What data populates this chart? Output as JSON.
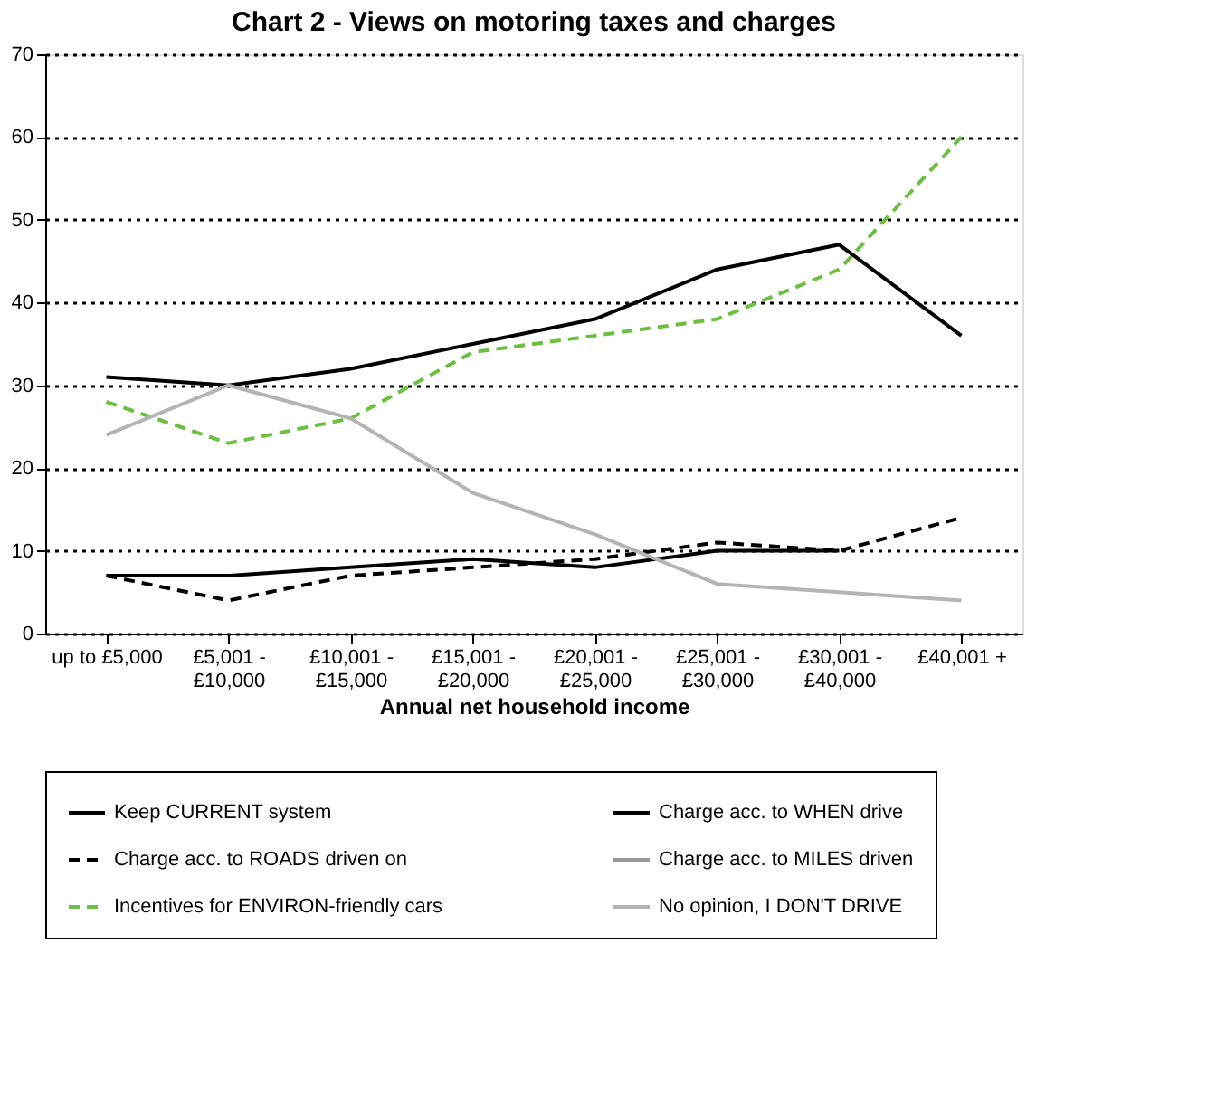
{
  "chart_data": {
    "type": "line",
    "title": "Chart 2 - Views on motoring taxes and charges",
    "xlabel": "Annual net household income",
    "categories": [
      "up to £5,000",
      "£5,001 - £10,000",
      "£10,001 - £15,000",
      "£15,001 - £20,000",
      "£20,001 - £25,000",
      "£25,001 - £30,000",
      "£30,001 - £40,000",
      "£40,001 +"
    ],
    "series": [
      {
        "name": "Keep CURRENT system",
        "color": "#000000",
        "line_style": "solid",
        "values": [
          31,
          30,
          32,
          35,
          38,
          44,
          47,
          36
        ]
      },
      {
        "name": "Charge acc. to WHEN drive",
        "color": "#000000",
        "line_style": "solid",
        "values": [
          7,
          7,
          8,
          9,
          8,
          10,
          10,
          null
        ]
      },
      {
        "name": "Charge acc. to ROADS driven on",
        "color": "#000000",
        "line_style": "dashed",
        "values": [
          7,
          4,
          7,
          8,
          9,
          11,
          10,
          14
        ]
      },
      {
        "name": "Charge acc. to MILES driven",
        "color": "#999999",
        "line_style": "solid",
        "values": [
          null,
          null,
          null,
          null,
          null,
          null,
          null,
          null
        ]
      },
      {
        "name": "Incentives for ENVIRON-friendly cars",
        "color": "#6cbf3f",
        "line_style": "dashed",
        "values": [
          28,
          23,
          26,
          34,
          36,
          38,
          44,
          60
        ]
      },
      {
        "name": "No opinion, I DON'T DRIVE",
        "color": "#b4b4b4",
        "line_style": "solid",
        "values": [
          24,
          30,
          26,
          17,
          12,
          6,
          5,
          4
        ]
      }
    ],
    "ylim": [
      0,
      70
    ],
    "yticks": [
      0,
      10,
      20,
      30,
      40,
      50,
      60,
      70
    ],
    "grid": "y",
    "legend": "bottom",
    "marker": "none"
  }
}
